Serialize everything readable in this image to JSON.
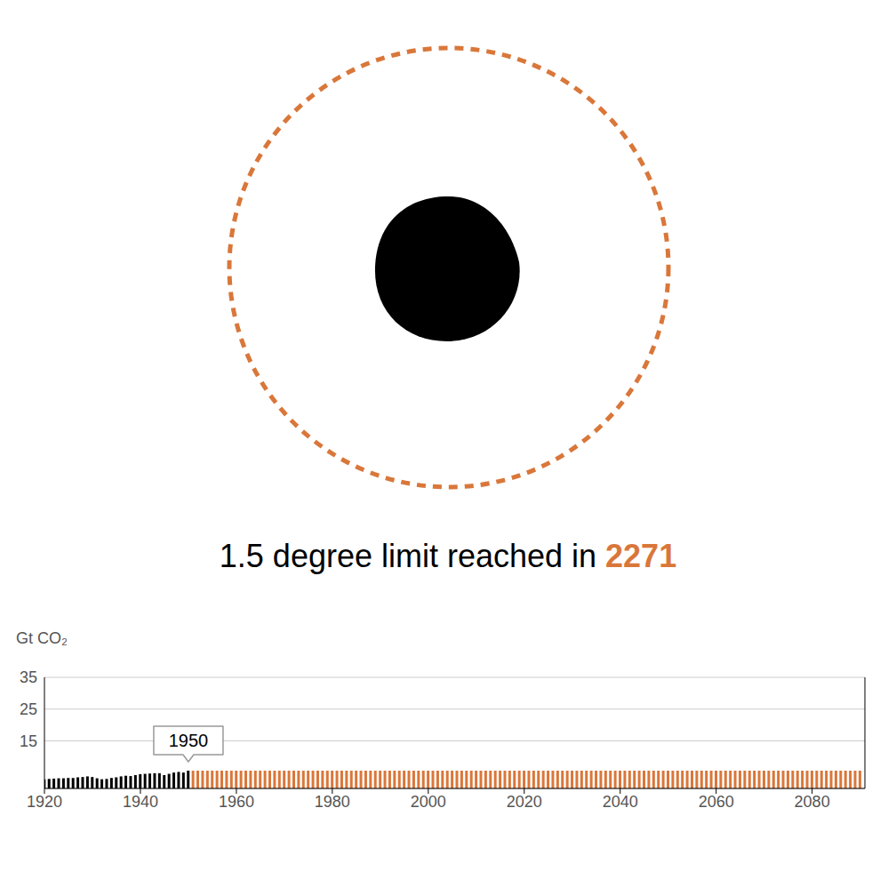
{
  "chart_data": {
    "type": "bar",
    "title": "1.5 degree limit reached in",
    "limit_year": 2271,
    "y_label": "Gt CO₂",
    "x": [
      1920,
      1921,
      1922,
      1923,
      1924,
      1925,
      1926,
      1927,
      1928,
      1929,
      1930,
      1931,
      1932,
      1933,
      1934,
      1935,
      1936,
      1937,
      1938,
      1939,
      1940,
      1941,
      1942,
      1943,
      1944,
      1945,
      1946,
      1947,
      1948,
      1949,
      1950,
      1951,
      1952,
      1953,
      1954,
      1955,
      1956,
      1957,
      1958,
      1959,
      1960,
      1961,
      1962,
      1963,
      1964,
      1965,
      1966,
      1967,
      1968,
      1969,
      1970,
      1971,
      1972,
      1973,
      1974,
      1975,
      1976,
      1977,
      1978,
      1979,
      1980,
      1981,
      1982,
      1983,
      1984,
      1985,
      1986,
      1987,
      1988,
      1989,
      1990,
      1991,
      1992,
      1993,
      1994,
      1995,
      1996,
      1997,
      1998,
      1999,
      2000,
      2001,
      2002,
      2003,
      2004,
      2005,
      2006,
      2007,
      2008,
      2009,
      2010,
      2011,
      2012,
      2013,
      2014,
      2015,
      2016,
      2017,
      2018,
      2019,
      2020,
      2021,
      2022,
      2023,
      2024,
      2025,
      2026,
      2027,
      2028,
      2029,
      2030,
      2031,
      2032,
      2033,
      2034,
      2035,
      2036,
      2037,
      2038,
      2039,
      2040,
      2041,
      2042,
      2043,
      2044,
      2045,
      2046,
      2047,
      2048,
      2049,
      2050,
      2051,
      2052,
      2053,
      2054,
      2055,
      2056,
      2057,
      2058,
      2059,
      2060,
      2061,
      2062,
      2063,
      2064,
      2065,
      2066,
      2067,
      2068,
      2069,
      2070,
      2071,
      2072,
      2073,
      2074,
      2075,
      2076,
      2077,
      2078,
      2079,
      2080,
      2081,
      2082,
      2083,
      2084,
      2085,
      2086,
      2087,
      2088,
      2089,
      2090
    ],
    "series": [
      {
        "color": "#000000",
        "values": [
          2.9,
          3.0,
          3.1,
          3.2,
          3.2,
          3.3,
          3.3,
          3.5,
          3.6,
          3.8,
          3.6,
          3.2,
          2.9,
          3.0,
          3.3,
          3.5,
          3.8,
          4.0,
          3.9,
          4.2,
          4.5,
          4.6,
          4.7,
          4.8,
          4.8,
          4.2,
          4.6,
          5.0,
          5.2,
          5.0,
          5.6,
          null,
          null,
          null,
          null,
          null,
          null,
          null,
          null,
          null,
          null,
          null,
          null,
          null,
          null,
          null,
          null,
          null,
          null,
          null,
          null,
          null,
          null,
          null,
          null,
          null,
          null,
          null,
          null,
          null,
          null,
          null,
          null,
          null,
          null,
          null,
          null,
          null,
          null,
          null,
          null,
          null,
          null,
          null,
          null,
          null,
          null,
          null,
          null,
          null,
          null,
          null,
          null,
          null,
          null,
          null,
          null,
          null,
          null,
          null,
          null,
          null,
          null,
          null,
          null,
          null,
          null,
          null,
          null,
          null,
          null,
          null,
          null,
          null,
          null,
          null,
          null,
          null,
          null,
          null,
          null,
          null,
          null,
          null,
          null,
          null,
          null,
          null,
          null,
          null,
          null,
          null,
          null,
          null,
          null,
          null,
          null,
          null,
          null,
          null,
          null,
          null,
          null,
          null,
          null,
          null,
          null,
          null,
          null,
          null,
          null,
          null,
          null,
          null,
          null,
          null,
          null,
          null,
          null,
          null,
          null,
          null,
          null,
          null,
          null,
          null,
          null,
          null,
          null,
          null,
          null,
          null,
          null,
          null,
          null,
          null,
          null,
          null,
          null,
          null,
          null
        ]
      },
      {
        "color": "#d9773a",
        "values": [
          null,
          null,
          null,
          null,
          null,
          null,
          null,
          null,
          null,
          null,
          null,
          null,
          null,
          null,
          null,
          null,
          null,
          null,
          null,
          null,
          null,
          null,
          null,
          null,
          null,
          null,
          null,
          null,
          null,
          null,
          null,
          5.6,
          5.6,
          5.6,
          5.6,
          5.6,
          5.6,
          5.6,
          5.6,
          5.6,
          5.6,
          5.6,
          5.6,
          5.6,
          5.6,
          5.6,
          5.6,
          5.6,
          5.6,
          5.6,
          5.6,
          5.6,
          5.6,
          5.6,
          5.6,
          5.6,
          5.6,
          5.6,
          5.6,
          5.6,
          5.6,
          5.6,
          5.6,
          5.6,
          5.6,
          5.6,
          5.6,
          5.6,
          5.6,
          5.6,
          5.6,
          5.6,
          5.6,
          5.6,
          5.6,
          5.6,
          5.6,
          5.6,
          5.6,
          5.6,
          5.6,
          5.6,
          5.6,
          5.6,
          5.6,
          5.6,
          5.6,
          5.6,
          5.6,
          5.6,
          5.6,
          5.6,
          5.6,
          5.6,
          5.6,
          5.6,
          5.6,
          5.6,
          5.6,
          5.6,
          5.6,
          5.6,
          5.6,
          5.6,
          5.6,
          5.6,
          5.6,
          5.6,
          5.6,
          5.6,
          5.6,
          5.6,
          5.6,
          5.6,
          5.6,
          5.6,
          5.6,
          5.6,
          5.6,
          5.6,
          5.6,
          5.6,
          5.6,
          5.6,
          5.6,
          5.6,
          5.6,
          5.6,
          5.6,
          5.6,
          5.6,
          5.6,
          5.6,
          5.6,
          5.6,
          5.6,
          5.6,
          5.6,
          5.6,
          5.6,
          5.6,
          5.6,
          5.6,
          5.6,
          5.6,
          5.6,
          5.6,
          5.6,
          5.6,
          5.6,
          5.6,
          5.6,
          5.6,
          5.6,
          5.6,
          5.6,
          5.6,
          5.6,
          5.6,
          5.6,
          5.6,
          5.6,
          5.6,
          5.6,
          5.6,
          5.6,
          5.6,
          5.6,
          5.6,
          5.6,
          5.6
        ]
      }
    ],
    "xlim": [
      1920,
      2091
    ],
    "xticks": [
      1920,
      1940,
      1960,
      1980,
      2000,
      2020,
      2040,
      2060,
      2080
    ],
    "ylim": [
      0,
      35
    ],
    "yticks": [
      15,
      25,
      35
    ],
    "grid": true,
    "annotations": [
      {
        "x": 1950,
        "text": "1950"
      }
    ]
  }
}
